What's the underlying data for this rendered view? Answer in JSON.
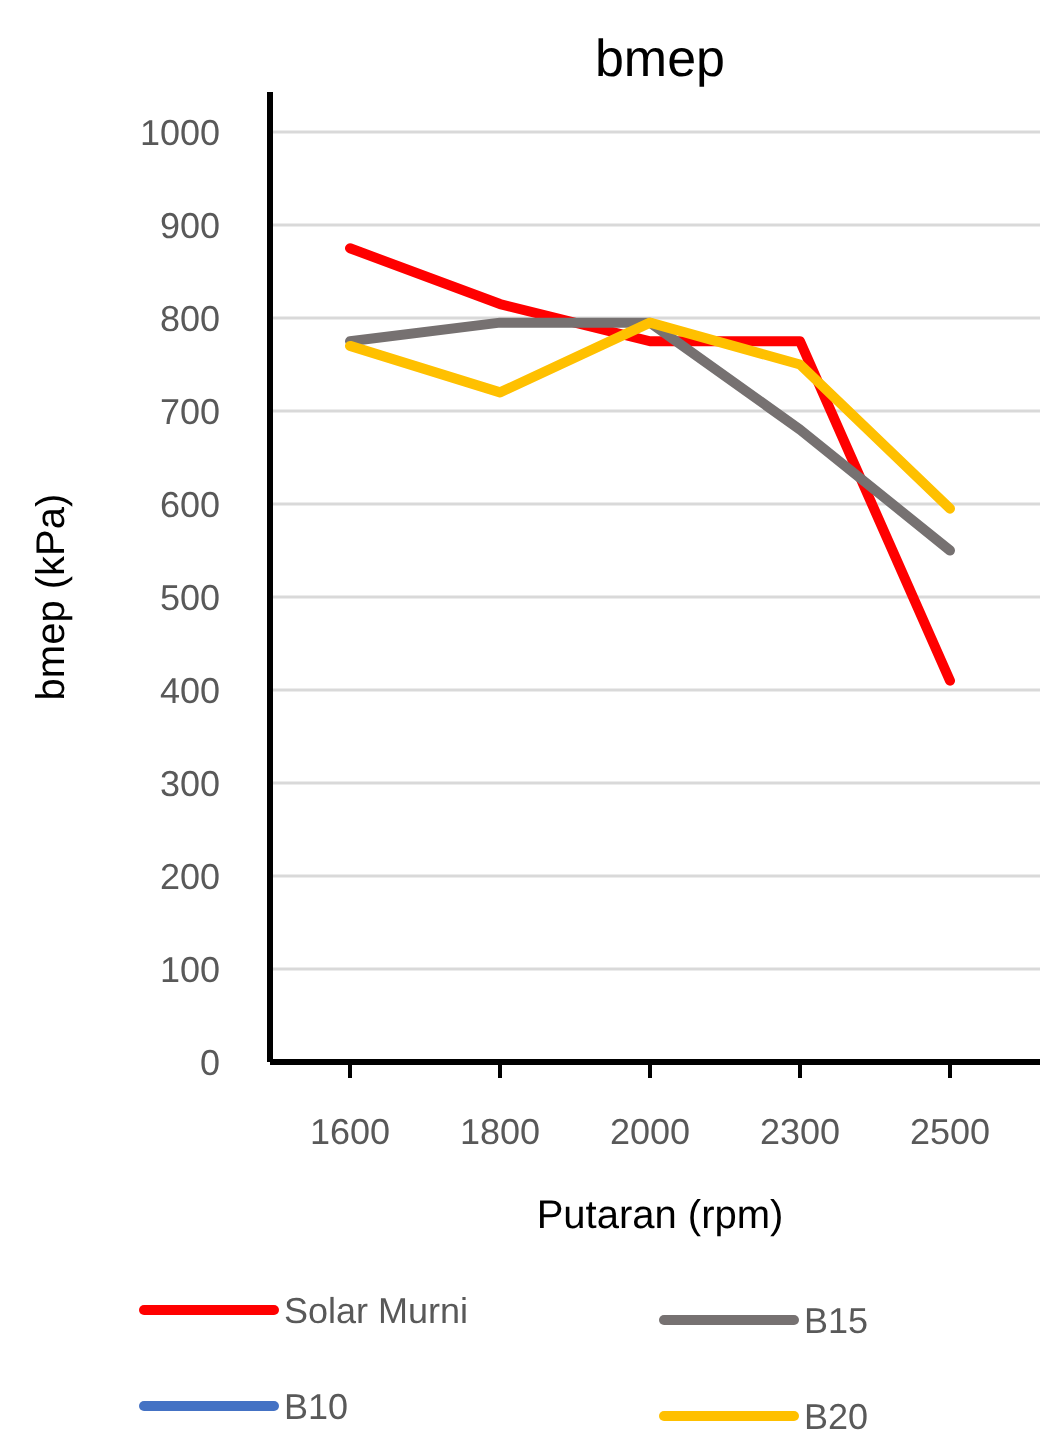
{
  "chart_data": {
    "type": "line",
    "title": "bmep",
    "xlabel": "Putaran (rpm)",
    "ylabel": "bmep (kPa)",
    "categories": [
      "1600",
      "1800",
      "2000",
      "2300",
      "2500"
    ],
    "series": [
      {
        "name": "Solar Murni",
        "color": "#ff0000",
        "values": [
          875,
          815,
          775,
          775,
          410
        ]
      },
      {
        "name": "B10",
        "color": "#4472c4",
        "values": [
          null,
          null,
          null,
          null,
          null
        ]
      },
      {
        "name": "B15",
        "color": "#767171",
        "values": [
          775,
          795,
          795,
          680,
          550
        ]
      },
      {
        "name": "B20",
        "color": "#ffc000",
        "values": [
          770,
          720,
          795,
          750,
          595
        ]
      }
    ],
    "ylim": [
      0,
      1000
    ],
    "yticks": [
      0,
      100,
      200,
      300,
      400,
      500,
      600,
      700,
      800,
      900,
      1000
    ],
    "grid": "y",
    "legend": "bottom",
    "marker": "none",
    "line_style": "solid"
  }
}
